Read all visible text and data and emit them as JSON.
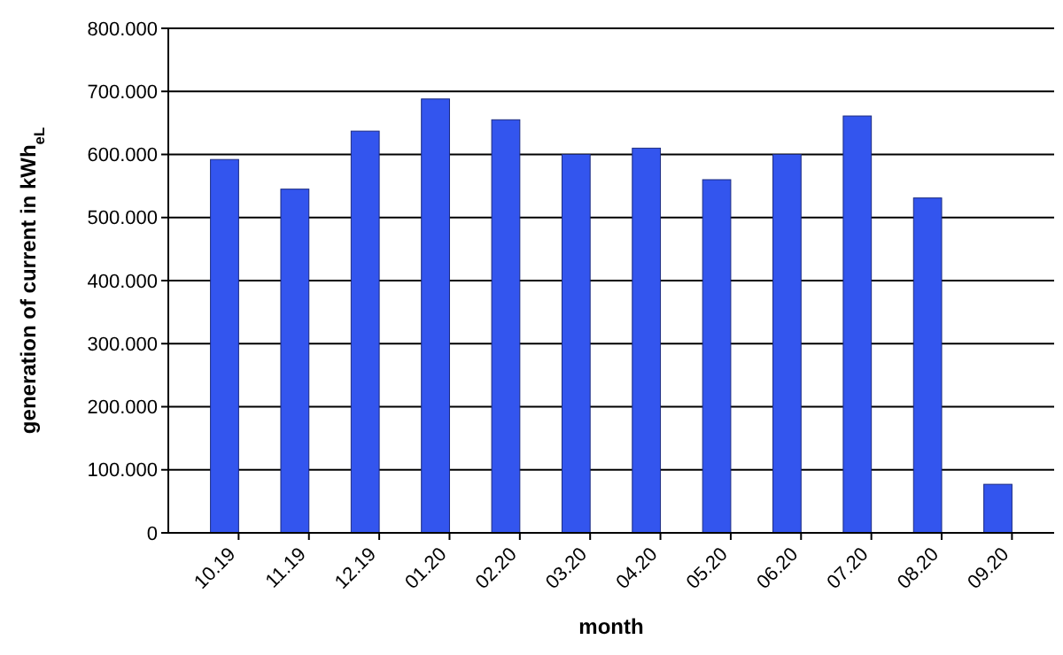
{
  "chart_data": {
    "type": "bar",
    "xlabel": "month",
    "ylabel": "generation of current in kWh$_{eL}$",
    "categories": [
      "10.19",
      "11.19",
      "12.19",
      "01.20",
      "02.20",
      "03.20",
      "04.20",
      "05.20",
      "06.20",
      "07.20",
      "08.20",
      "09.20"
    ],
    "values": [
      592,
      545,
      637,
      688,
      655,
      600,
      610,
      560,
      600,
      661,
      531,
      77
    ],
    "color": "#3355ee",
    "ylim": [
      0,
      800
    ],
    "yticks": [
      {
        "value": 0,
        "label": "0"
      },
      {
        "value": 100,
        "label": "100.000"
      },
      {
        "value": 200,
        "label": "200.000"
      },
      {
        "value": 300,
        "label": "300.000"
      },
      {
        "value": 400,
        "label": "400.000"
      },
      {
        "value": 500,
        "label": "500.000"
      },
      {
        "value": 600,
        "label": "600.000"
      },
      {
        "value": 700,
        "label": "700.000"
      },
      {
        "value": 800,
        "label": "800.000"
      }
    ],
    "grid": "y"
  }
}
